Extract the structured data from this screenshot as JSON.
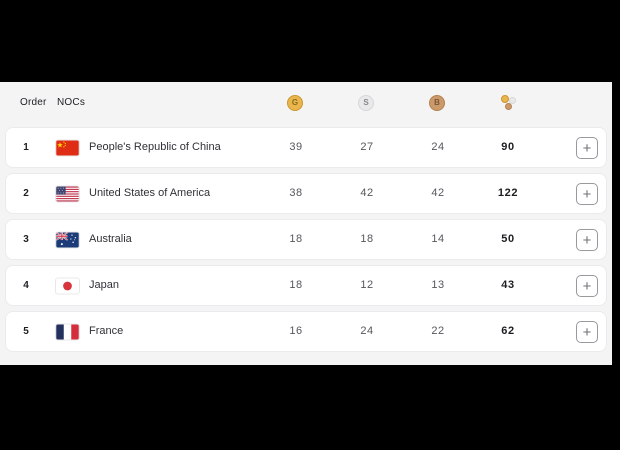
{
  "table": {
    "headers": {
      "order": "Order",
      "nocs": "NOCs"
    },
    "medal_columns": [
      {
        "id": "gold",
        "label": "G",
        "icon": "gold-medal-icon"
      },
      {
        "id": "silver",
        "label": "S",
        "icon": "silver-medal-icon"
      },
      {
        "id": "bronze",
        "label": "B",
        "icon": "bronze-medal-icon"
      },
      {
        "id": "total",
        "label": "",
        "icon": "total-medals-icon"
      }
    ],
    "expand_label": "+",
    "rows": [
      {
        "order": "1",
        "noc": "People's Republic of China",
        "flag": "cn",
        "gold": "39",
        "silver": "27",
        "bronze": "24",
        "total": "90"
      },
      {
        "order": "2",
        "noc": "United States of America",
        "flag": "us",
        "gold": "38",
        "silver": "42",
        "bronze": "42",
        "total": "122"
      },
      {
        "order": "3",
        "noc": "Australia",
        "flag": "au",
        "gold": "18",
        "silver": "18",
        "bronze": "14",
        "total": "50"
      },
      {
        "order": "4",
        "noc": "Japan",
        "flag": "jp",
        "gold": "18",
        "silver": "12",
        "bronze": "13",
        "total": "43"
      },
      {
        "order": "5",
        "noc": "France",
        "flag": "fr",
        "gold": "16",
        "silver": "24",
        "bronze": "22",
        "total": "62"
      }
    ]
  },
  "colors": {
    "letterbox": "#000000",
    "panel-bg": "#f4f4f5",
    "card-bg": "#ffffff",
    "card-border": "#ebebed",
    "gold": "#e8b64c",
    "gold-border": "#cd9530",
    "gold-text": "#8f6a1d",
    "silver": "#e9e9eb",
    "silver-border": "#d7d7da",
    "silver-text": "#86868a",
    "bronze": "#cb9a6b",
    "bronze-border": "#b5814f",
    "bronze-text": "#7c5637",
    "text-dark": "#1d1e22",
    "text-muted": "#55575c"
  }
}
